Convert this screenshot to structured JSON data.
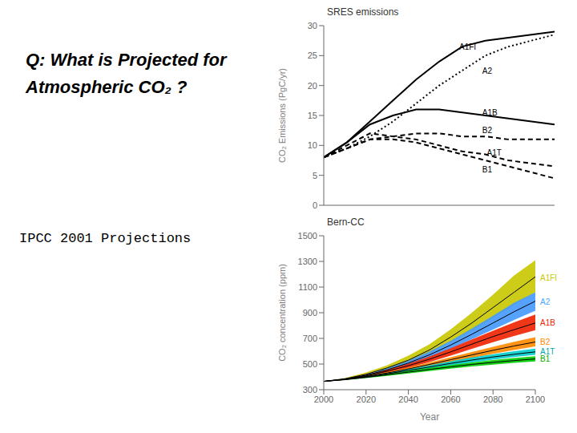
{
  "title": [
    "Q:  What is Projected for",
    "Atmospheric CO₂ ?"
  ],
  "subtitle": "IPCC 2001 Projections",
  "chart_data": [
    {
      "type": "line",
      "title": "SRES emissions",
      "ylabel": "CO₂ Emissions (PgC/yr)",
      "x": [
        2000,
        2010,
        2020,
        2030,
        2040,
        2050,
        2060,
        2070,
        2080,
        2090,
        2100
      ],
      "xlim": [
        2000,
        2100
      ],
      "xticks": [
        2000,
        2020,
        2040,
        2060,
        2080,
        2100
      ],
      "ylim": [
        0,
        30
      ],
      "yticks": [
        0,
        5,
        10,
        15,
        20,
        25,
        30
      ],
      "tick_labels": "y",
      "series": [
        {
          "name": "A1FI",
          "color": "#000000",
          "line_style": "solid",
          "values": [
            8.0,
            10.5,
            14.0,
            17.5,
            21.0,
            24.0,
            26.5,
            27.5,
            28.0,
            28.5,
            29.0
          ]
        },
        {
          "name": "A2",
          "color": "#000000",
          "line_style": "dotted",
          "values": [
            8.0,
            9.5,
            11.5,
            14.0,
            17.0,
            20.0,
            22.5,
            25.0,
            26.5,
            27.5,
            28.5
          ]
        },
        {
          "name": "A1B",
          "color": "#000000",
          "line_style": "solid",
          "values": [
            8.0,
            10.5,
            13.5,
            15.0,
            16.0,
            16.0,
            15.5,
            15.0,
            14.5,
            14.0,
            13.5
          ]
        },
        {
          "name": "B2",
          "color": "#000000",
          "line_style": "dashed",
          "values": [
            8.0,
            9.5,
            11.0,
            11.5,
            12.0,
            12.0,
            11.5,
            11.5,
            11.0,
            11.0,
            11.0
          ]
        },
        {
          "name": "A1T",
          "color": "#000000",
          "line_style": "dashed",
          "values": [
            8.0,
            10.0,
            12.0,
            11.5,
            11.0,
            10.0,
            9.0,
            8.5,
            7.5,
            7.0,
            6.5
          ]
        },
        {
          "name": "B1",
          "color": "#000000",
          "line_style": "dashed",
          "values": [
            8.0,
            9.5,
            11.0,
            11.0,
            10.5,
            9.5,
            8.5,
            7.5,
            6.5,
            5.5,
            4.5
          ]
        }
      ],
      "annotations": [
        {
          "text": "A1FI",
          "x": 2058,
          "y": 26.5
        },
        {
          "text": "A2",
          "x": 2068,
          "y": 22.5
        },
        {
          "text": "A1B",
          "x": 2068,
          "y": 15.5
        },
        {
          "text": "B2",
          "x": 2068,
          "y": 12.5
        },
        {
          "text": "A1T",
          "x": 2070,
          "y": 8.8
        },
        {
          "text": "B1",
          "x": 2068,
          "y": 6.0
        }
      ]
    },
    {
      "type": "area",
      "title": "Bern-CC",
      "ylabel": "CO₂ concentration (ppm)",
      "xlabel": "Year",
      "x": [
        2000,
        2010,
        2020,
        2030,
        2040,
        2050,
        2060,
        2070,
        2080,
        2090,
        2100
      ],
      "xlim": [
        2000,
        2100
      ],
      "xticks": [
        2000,
        2020,
        2040,
        2060,
        2080,
        2100
      ],
      "ylim": [
        300,
        1500
      ],
      "yticks": [
        300,
        500,
        700,
        900,
        1100,
        1300,
        1500
      ],
      "series": [
        {
          "name": "A1FI",
          "color": "#c8c800",
          "values": [
            365,
            385,
            420,
            470,
            530,
            610,
            710,
            820,
            940,
            1060,
            1180
          ],
          "low": [
            365,
            380,
            410,
            455,
            510,
            580,
            670,
            760,
            860,
            960,
            1060
          ],
          "high": [
            365,
            390,
            435,
            490,
            565,
            655,
            770,
            900,
            1040,
            1190,
            1310
          ]
        },
        {
          "name": "A2",
          "color": "#4499ff",
          "values": [
            365,
            382,
            412,
            455,
            508,
            572,
            648,
            732,
            820,
            908,
            990
          ],
          "low": [
            365,
            378,
            405,
            443,
            492,
            550,
            618,
            693,
            768,
            843,
            916
          ],
          "high": [
            365,
            386,
            420,
            467,
            526,
            598,
            682,
            777,
            876,
            978,
            1060
          ]
        },
        {
          "name": "A1B",
          "color": "#ee2200",
          "values": [
            365,
            382,
            408,
            444,
            487,
            538,
            595,
            655,
            714,
            768,
            820
          ],
          "low": [
            365,
            378,
            400,
            432,
            470,
            515,
            566,
            618,
            670,
            718,
            764
          ],
          "high": [
            365,
            386,
            416,
            456,
            503,
            560,
            623,
            692,
            760,
            825,
            886
          ]
        },
        {
          "name": "B2",
          "color": "#ff8800",
          "values": [
            365,
            380,
            402,
            430,
            462,
            497,
            534,
            571,
            607,
            641,
            672
          ],
          "low": [
            365,
            377,
            396,
            421,
            449,
            480,
            514,
            547,
            579,
            610,
            638
          ],
          "high": [
            365,
            383,
            408,
            438,
            474,
            512,
            553,
            594,
            634,
            673,
            710
          ]
        },
        {
          "name": "A1T",
          "color": "#00cccc",
          "values": [
            365,
            380,
            400,
            424,
            450,
            477,
            505,
            531,
            555,
            576,
            595
          ],
          "low": [
            365,
            377,
            394,
            415,
            439,
            463,
            488,
            512,
            534,
            554,
            572
          ],
          "high": [
            365,
            383,
            406,
            432,
            461,
            491,
            522,
            551,
            577,
            600,
            621
          ]
        },
        {
          "name": "B1",
          "color": "#00cc00",
          "values": [
            365,
            378,
            396,
            416,
            437,
            458,
            478,
            497,
            513,
            527,
            540
          ],
          "low": [
            365,
            375,
            390,
            408,
            427,
            446,
            464,
            481,
            496,
            509,
            520
          ],
          "high": [
            365,
            381,
            402,
            424,
            447,
            470,
            492,
            513,
            531,
            547,
            561
          ]
        }
      ],
      "annotations": [
        {
          "text": "A1FI",
          "y": 1175,
          "color": "#c8c800"
        },
        {
          "text": "A2",
          "y": 985,
          "color": "#44aaff"
        },
        {
          "text": "A1B",
          "y": 820,
          "color": "#ee2200"
        },
        {
          "text": "B2",
          "y": 670,
          "color": "#ff8800"
        },
        {
          "text": "A1T",
          "y": 600,
          "color": "#00aaaa"
        },
        {
          "text": "B1",
          "y": 538,
          "color": "#00aa00"
        }
      ]
    }
  ]
}
